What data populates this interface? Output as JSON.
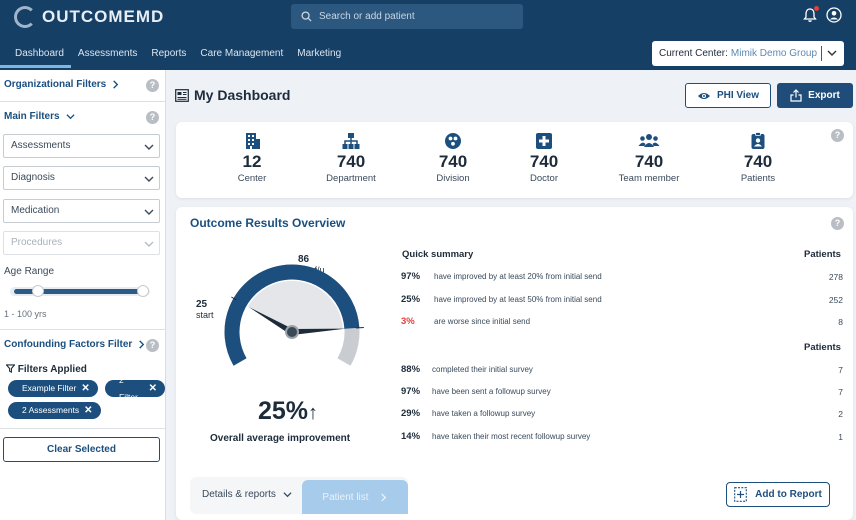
{
  "app": {
    "logo_text": "OUTCOMEMD"
  },
  "search": {
    "placeholder": "Search or add patient"
  },
  "nav": {
    "items": [
      "Dashboard",
      "Assessments",
      "Reports",
      "Care Management",
      "Marketing"
    ],
    "active": "Dashboard"
  },
  "center": {
    "label": "Current Center:",
    "value": "Mimik Demo Group"
  },
  "sidebar": {
    "org_filters": "Organizational Filters",
    "main_filters": "Main Filters",
    "selects": [
      "Assessments",
      "Diagnosis",
      "Medication",
      "Procedures"
    ],
    "age_label": "Age Range",
    "age_range": "1 - 100 yrs",
    "confounding": "Confounding Factors Filter",
    "filters_applied": "Filters Applied",
    "chips": [
      "Example Filter",
      "2 Filter",
      "2 Assessments"
    ],
    "clear": "Clear Selected"
  },
  "main": {
    "title": "My Dashboard",
    "phi_view": "PHI View",
    "export": "Export"
  },
  "stats": [
    {
      "icon": "building-icon",
      "value": "12",
      "label": "Center"
    },
    {
      "icon": "sitemap-icon",
      "value": "740",
      "label": "Department"
    },
    {
      "icon": "division-icon",
      "value": "740",
      "label": "Division"
    },
    {
      "icon": "medical-cross-icon",
      "value": "740",
      "label": "Doctor"
    },
    {
      "icon": "team-icon",
      "value": "740",
      "label": "Team member"
    },
    {
      "icon": "patient-badge-icon",
      "value": "740",
      "label": "Patients"
    }
  ],
  "outcome": {
    "title": "Outcome Results Overview",
    "gauge": {
      "start_value": "25",
      "start_label": "start",
      "last_value": "86",
      "last_label": "last f/u",
      "start": 25,
      "last": 86,
      "current": 25
    },
    "overall_pct": "25%",
    "overall_arrow": "↑",
    "overall_label": "Overall average improvement",
    "quick_summary": "Quick summary",
    "patients_header": "Patients",
    "summary_rows": [
      {
        "pct": "97%",
        "desc": "have improved by at least 20% from initial send",
        "count": "278"
      },
      {
        "pct": "25%",
        "desc": "have improved by at least 50% from initial send",
        "count": "252"
      },
      {
        "pct": "3%",
        "desc": "are worse since initial send",
        "count": "8"
      }
    ],
    "survey_rows": [
      {
        "pct": "88%",
        "desc": "completed their initial survey",
        "count": "7"
      },
      {
        "pct": "97%",
        "desc": "have been sent a followup survey",
        "count": "7"
      },
      {
        "pct": "29%",
        "desc": "have taken a followup survey",
        "count": "2"
      },
      {
        "pct": "14%",
        "desc": "have taken their most recent followup survey",
        "count": "1"
      }
    ],
    "details_tab": "Details & reports",
    "patient_list_tab": "Patient list",
    "add_to_report": "Add to Report"
  },
  "colors": {
    "brand": "#163f66",
    "accent": "#1d4f7e",
    "alert": "#e0413a",
    "gauge_fill": "#1d4f7e",
    "gauge_track": "#c9ccd0"
  }
}
